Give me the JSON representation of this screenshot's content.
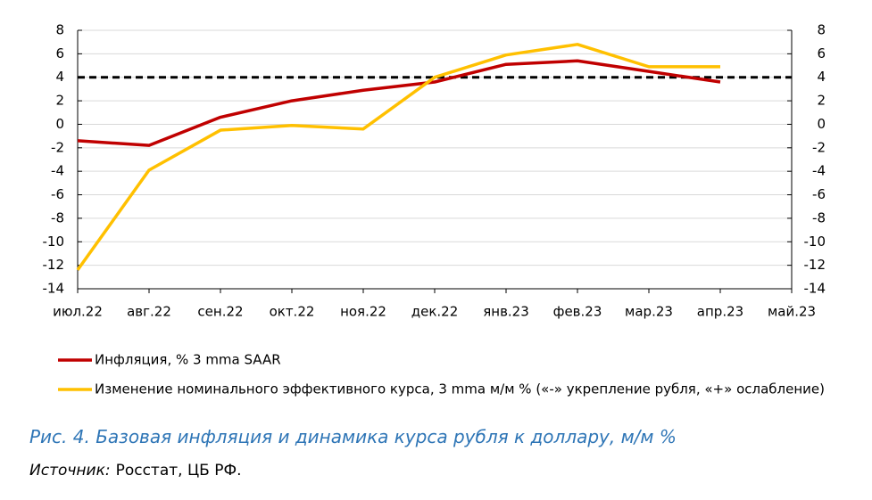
{
  "chart_data": {
    "type": "line",
    "categories": [
      "июл.22",
      "авг.22",
      "сен.22",
      "окт.22",
      "ноя.22",
      "дек.22",
      "янв.23",
      "фев.23",
      "мар.23",
      "апр.23",
      "май.23"
    ],
    "series": [
      {
        "name": "Инфляция, % 3 mma SAAR",
        "color": "#c00000",
        "values": [
          -1.4,
          -1.8,
          0.6,
          2.0,
          2.9,
          3.6,
          5.1,
          5.4,
          4.5,
          3.6,
          null
        ]
      },
      {
        "name": "Изменение номинального эффективного курса, 3 mma м/м % («-» укрепление рубля, «+» ослабление)",
        "color": "#ffc000",
        "values": [
          -12.4,
          -3.9,
          -0.5,
          -0.1,
          -0.4,
          4.0,
          5.9,
          6.8,
          4.9,
          4.9,
          null
        ]
      }
    ],
    "reference_line": 4,
    "ylim": [
      -14,
      8
    ],
    "yticks": [
      -14,
      -12,
      -10,
      -8,
      -6,
      -4,
      -2,
      0,
      2,
      4,
      6,
      8
    ],
    "y2lim": [
      -14,
      8
    ],
    "y2ticks": [
      -14,
      -12,
      -10,
      -8,
      -6,
      -4,
      -2,
      0,
      2,
      4,
      6,
      8
    ],
    "grid": true,
    "caption": "Рис. 4. Базовая инфляция и динамика курса рубля к доллару, м/м %",
    "source_label": "Источник:",
    "source_text": "Росстат, ЦБ РФ."
  }
}
